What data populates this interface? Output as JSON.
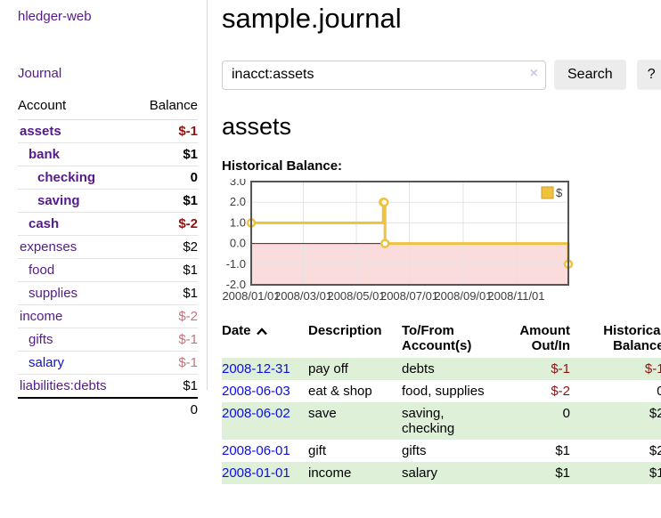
{
  "app": {
    "title": "hledger-web",
    "nav_journal": "Journal"
  },
  "sidebar": {
    "header": {
      "account": "Account",
      "balance": "Balance"
    },
    "accounts": [
      {
        "name": "assets",
        "balance": "$-1",
        "indent": 1,
        "bold": true,
        "link_color": "purple",
        "balance_class": "neg"
      },
      {
        "name": "bank",
        "balance": "$1",
        "indent": 2,
        "bold": true,
        "link_color": "purple",
        "balance_class": "pos"
      },
      {
        "name": "checking",
        "balance": "0",
        "indent": 3,
        "bold": true,
        "link_color": "purple",
        "balance_class": "pos"
      },
      {
        "name": "saving",
        "balance": "$1",
        "indent": 3,
        "bold": true,
        "link_color": "purple",
        "balance_class": "pos"
      },
      {
        "name": "cash",
        "balance": "$-2",
        "indent": 2,
        "bold": true,
        "link_color": "purple",
        "balance_class": "neg"
      },
      {
        "name": "expenses",
        "balance": "$2",
        "indent": 1,
        "bold": false,
        "link_color": "purple",
        "balance_class": "pos"
      },
      {
        "name": "food",
        "balance": "$1",
        "indent": 2,
        "bold": false,
        "link_color": "purple",
        "balance_class": "pos"
      },
      {
        "name": "supplies",
        "balance": "$1",
        "indent": 2,
        "bold": false,
        "link_color": "purple",
        "balance_class": "pos"
      },
      {
        "name": "income",
        "balance": "$-2",
        "indent": 1,
        "bold": false,
        "link_color": "purple",
        "balance_class": "negsoft"
      },
      {
        "name": "gifts",
        "balance": "$-1",
        "indent": 2,
        "bold": false,
        "link_color": "purple",
        "balance_class": "negsoft"
      },
      {
        "name": "salary",
        "balance": "$-1",
        "indent": 2,
        "bold": false,
        "link_color": "blue",
        "balance_class": "negsoft"
      },
      {
        "name": "liabilities:debts",
        "balance": "$1",
        "indent": 1,
        "bold": false,
        "link_color": "purple",
        "balance_class": "pos"
      }
    ],
    "total": "0"
  },
  "header": {
    "title": "sample.journal"
  },
  "search": {
    "value": "inacct:assets",
    "clear_icon": "×",
    "button_label": "Search",
    "help_label": "?"
  },
  "register": {
    "heading": "assets",
    "chart_label": "Historical Balance:"
  },
  "chart_data": {
    "type": "line",
    "title": "Historical Balance:",
    "step": true,
    "series": [
      {
        "name": "$",
        "color": "#EDC240",
        "points": [
          {
            "date": "2008/01/01",
            "value": 1
          },
          {
            "date": "2008/06/01",
            "value": 2
          },
          {
            "date": "2008/06/02",
            "value": 2
          },
          {
            "date": "2008/06/03",
            "value": 0
          },
          {
            "date": "2008/12/31",
            "value": -1
          }
        ]
      }
    ],
    "x_range": [
      "2008/01/01",
      "2008/12/31"
    ],
    "x_ticks": [
      "2008/01/01",
      "2008/03/01",
      "2008/05/01",
      "2008/07/01",
      "2008/09/01",
      "2008/11/01"
    ],
    "ylim": [
      -2,
      3
    ],
    "y_ticks": [
      3.0,
      2.0,
      1.0,
      0.0,
      -1.0,
      -2.0
    ],
    "y_tick_labels": [
      "3.0",
      "2.0",
      "1.0",
      "0.0",
      "-1.0",
      "-2.0"
    ],
    "grid": true,
    "negative_region_color": "#fbdcdc",
    "zero_line_color": "#990000",
    "border_color": "#545454",
    "legend": {
      "label": "$",
      "position": "top-right"
    }
  },
  "table": {
    "headers": {
      "date": "Date",
      "description": "Description",
      "tofrom": "To/From Account(s)",
      "amount": "Amount Out/In",
      "balance": "Historical Balance"
    },
    "rows": [
      {
        "date": "2008-12-31",
        "description": "pay off",
        "accounts": "debts",
        "amount": "$-1",
        "amount_negative": true,
        "balance": "$-1",
        "balance_negative": true
      },
      {
        "date": "2008-06-03",
        "description": "eat & shop",
        "accounts": "food, supplies",
        "amount": "$-2",
        "amount_negative": true,
        "balance": "0",
        "balance_negative": false
      },
      {
        "date": "2008-06-02",
        "description": "save",
        "accounts": "saving, checking",
        "amount": "0",
        "amount_negative": false,
        "balance": "$2",
        "balance_negative": false
      },
      {
        "date": "2008-06-01",
        "description": "gift",
        "accounts": "gifts",
        "amount": "$1",
        "amount_negative": false,
        "balance": "$2",
        "balance_negative": false
      },
      {
        "date": "2008-01-01",
        "description": "income",
        "accounts": "salary",
        "amount": "$1",
        "amount_negative": false,
        "balance": "$1",
        "balance_negative": false
      }
    ]
  }
}
